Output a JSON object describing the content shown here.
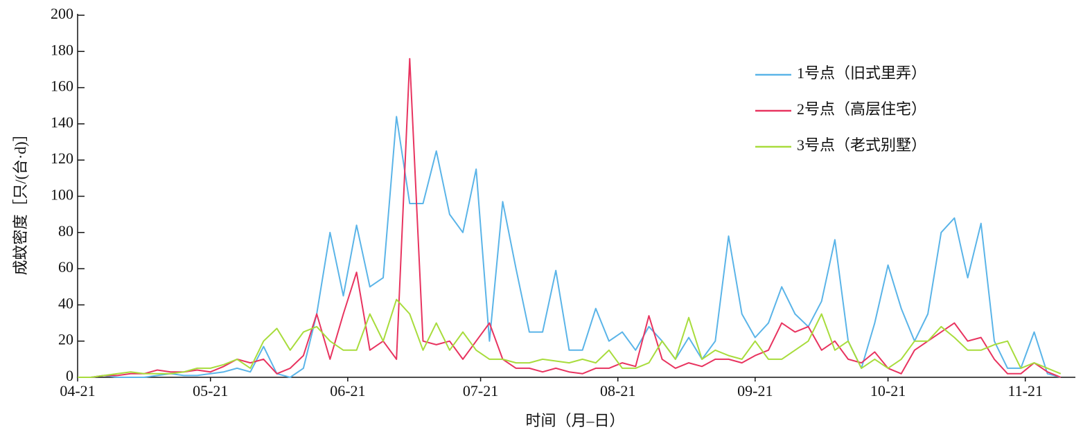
{
  "chart_data": {
    "type": "line",
    "y_label": "成蚊密度［只/(台·d)］",
    "x_label": "时间（月–日）",
    "ylim": [
      0,
      200
    ],
    "yticks": [
      0,
      20,
      40,
      60,
      80,
      100,
      120,
      140,
      160,
      180,
      200
    ],
    "xlim": [
      "04-21",
      "12-02"
    ],
    "xticks": [
      "04-21",
      "05-21",
      "06-21",
      "07-21",
      "08-21",
      "09-21",
      "10-21",
      "11-21"
    ],
    "legend": "upper right",
    "x": [
      "04-21",
      "04-24",
      "04-27",
      "04-30",
      "05-03",
      "05-06",
      "05-09",
      "05-12",
      "05-15",
      "05-18",
      "05-21",
      "05-24",
      "05-27",
      "05-30",
      "06-02",
      "06-05",
      "06-08",
      "06-11",
      "06-14",
      "06-17",
      "06-20",
      "06-23",
      "06-26",
      "06-29",
      "07-02",
      "07-05",
      "07-08",
      "07-11",
      "07-14",
      "07-17",
      "07-20",
      "07-23",
      "07-26",
      "07-29",
      "08-01",
      "08-04",
      "08-07",
      "08-10",
      "08-13",
      "08-16",
      "08-19",
      "08-22",
      "08-25",
      "08-28",
      "08-31",
      "09-03",
      "09-06",
      "09-09",
      "09-12",
      "09-15",
      "09-18",
      "09-21",
      "09-24",
      "09-27",
      "09-30",
      "10-03",
      "10-06",
      "10-09",
      "10-12",
      "10-15",
      "10-18",
      "10-21",
      "10-24",
      "10-27",
      "10-30",
      "11-02",
      "11-05",
      "11-08",
      "11-11",
      "11-14",
      "11-17",
      "11-20",
      "11-23",
      "11-26",
      "11-29"
    ],
    "series": [
      {
        "name": "1号点（旧式里弄）",
        "color": "#5ab4e8",
        "values": [
          0,
          0,
          1,
          0,
          0,
          0,
          1,
          2,
          1,
          1,
          2,
          3,
          5,
          3,
          17,
          2,
          0,
          5,
          35,
          80,
          45,
          84,
          50,
          55,
          144,
          96,
          96,
          125,
          90,
          80,
          115,
          20,
          97,
          60,
          25,
          25,
          59,
          15,
          15,
          38,
          20,
          25,
          15,
          28,
          20,
          10,
          22,
          10,
          20,
          78,
          35,
          22,
          30,
          50,
          35,
          28,
          42,
          76,
          20,
          5,
          30,
          62,
          38,
          20,
          35,
          80,
          88,
          55,
          85,
          20,
          5,
          5,
          25,
          2,
          0
        ]
      },
      {
        "name": "2号点（高层住宅）",
        "color": "#e8335f",
        "values": [
          0,
          0,
          1,
          1,
          2,
          2,
          4,
          3,
          3,
          4,
          3,
          6,
          10,
          8,
          10,
          2,
          5,
          12,
          35,
          10,
          35,
          58,
          15,
          20,
          10,
          176,
          20,
          18,
          20,
          10,
          20,
          30,
          10,
          5,
          5,
          3,
          5,
          3,
          2,
          5,
          5,
          8,
          6,
          34,
          10,
          5,
          8,
          6,
          10,
          10,
          8,
          12,
          15,
          30,
          25,
          28,
          15,
          20,
          10,
          8,
          14,
          5,
          2,
          15,
          20,
          25,
          30,
          20,
          22,
          10,
          2,
          2,
          8,
          3,
          0
        ]
      },
      {
        "name": "3号点（老式别墅）",
        "color": "#a8dc3c",
        "values": [
          0,
          0,
          1,
          2,
          3,
          2,
          2,
          2,
          3,
          5,
          5,
          7,
          10,
          5,
          20,
          27,
          15,
          25,
          28,
          20,
          15,
          15,
          35,
          20,
          43,
          35,
          15,
          30,
          15,
          25,
          15,
          10,
          10,
          8,
          8,
          10,
          9,
          8,
          10,
          8,
          15,
          5,
          5,
          8,
          20,
          10,
          33,
          10,
          15,
          12,
          10,
          20,
          10,
          10,
          15,
          20,
          35,
          15,
          20,
          5,
          10,
          5,
          10,
          20,
          20,
          28,
          22,
          15,
          15,
          18,
          20,
          5,
          8,
          5,
          2
        ]
      }
    ]
  }
}
